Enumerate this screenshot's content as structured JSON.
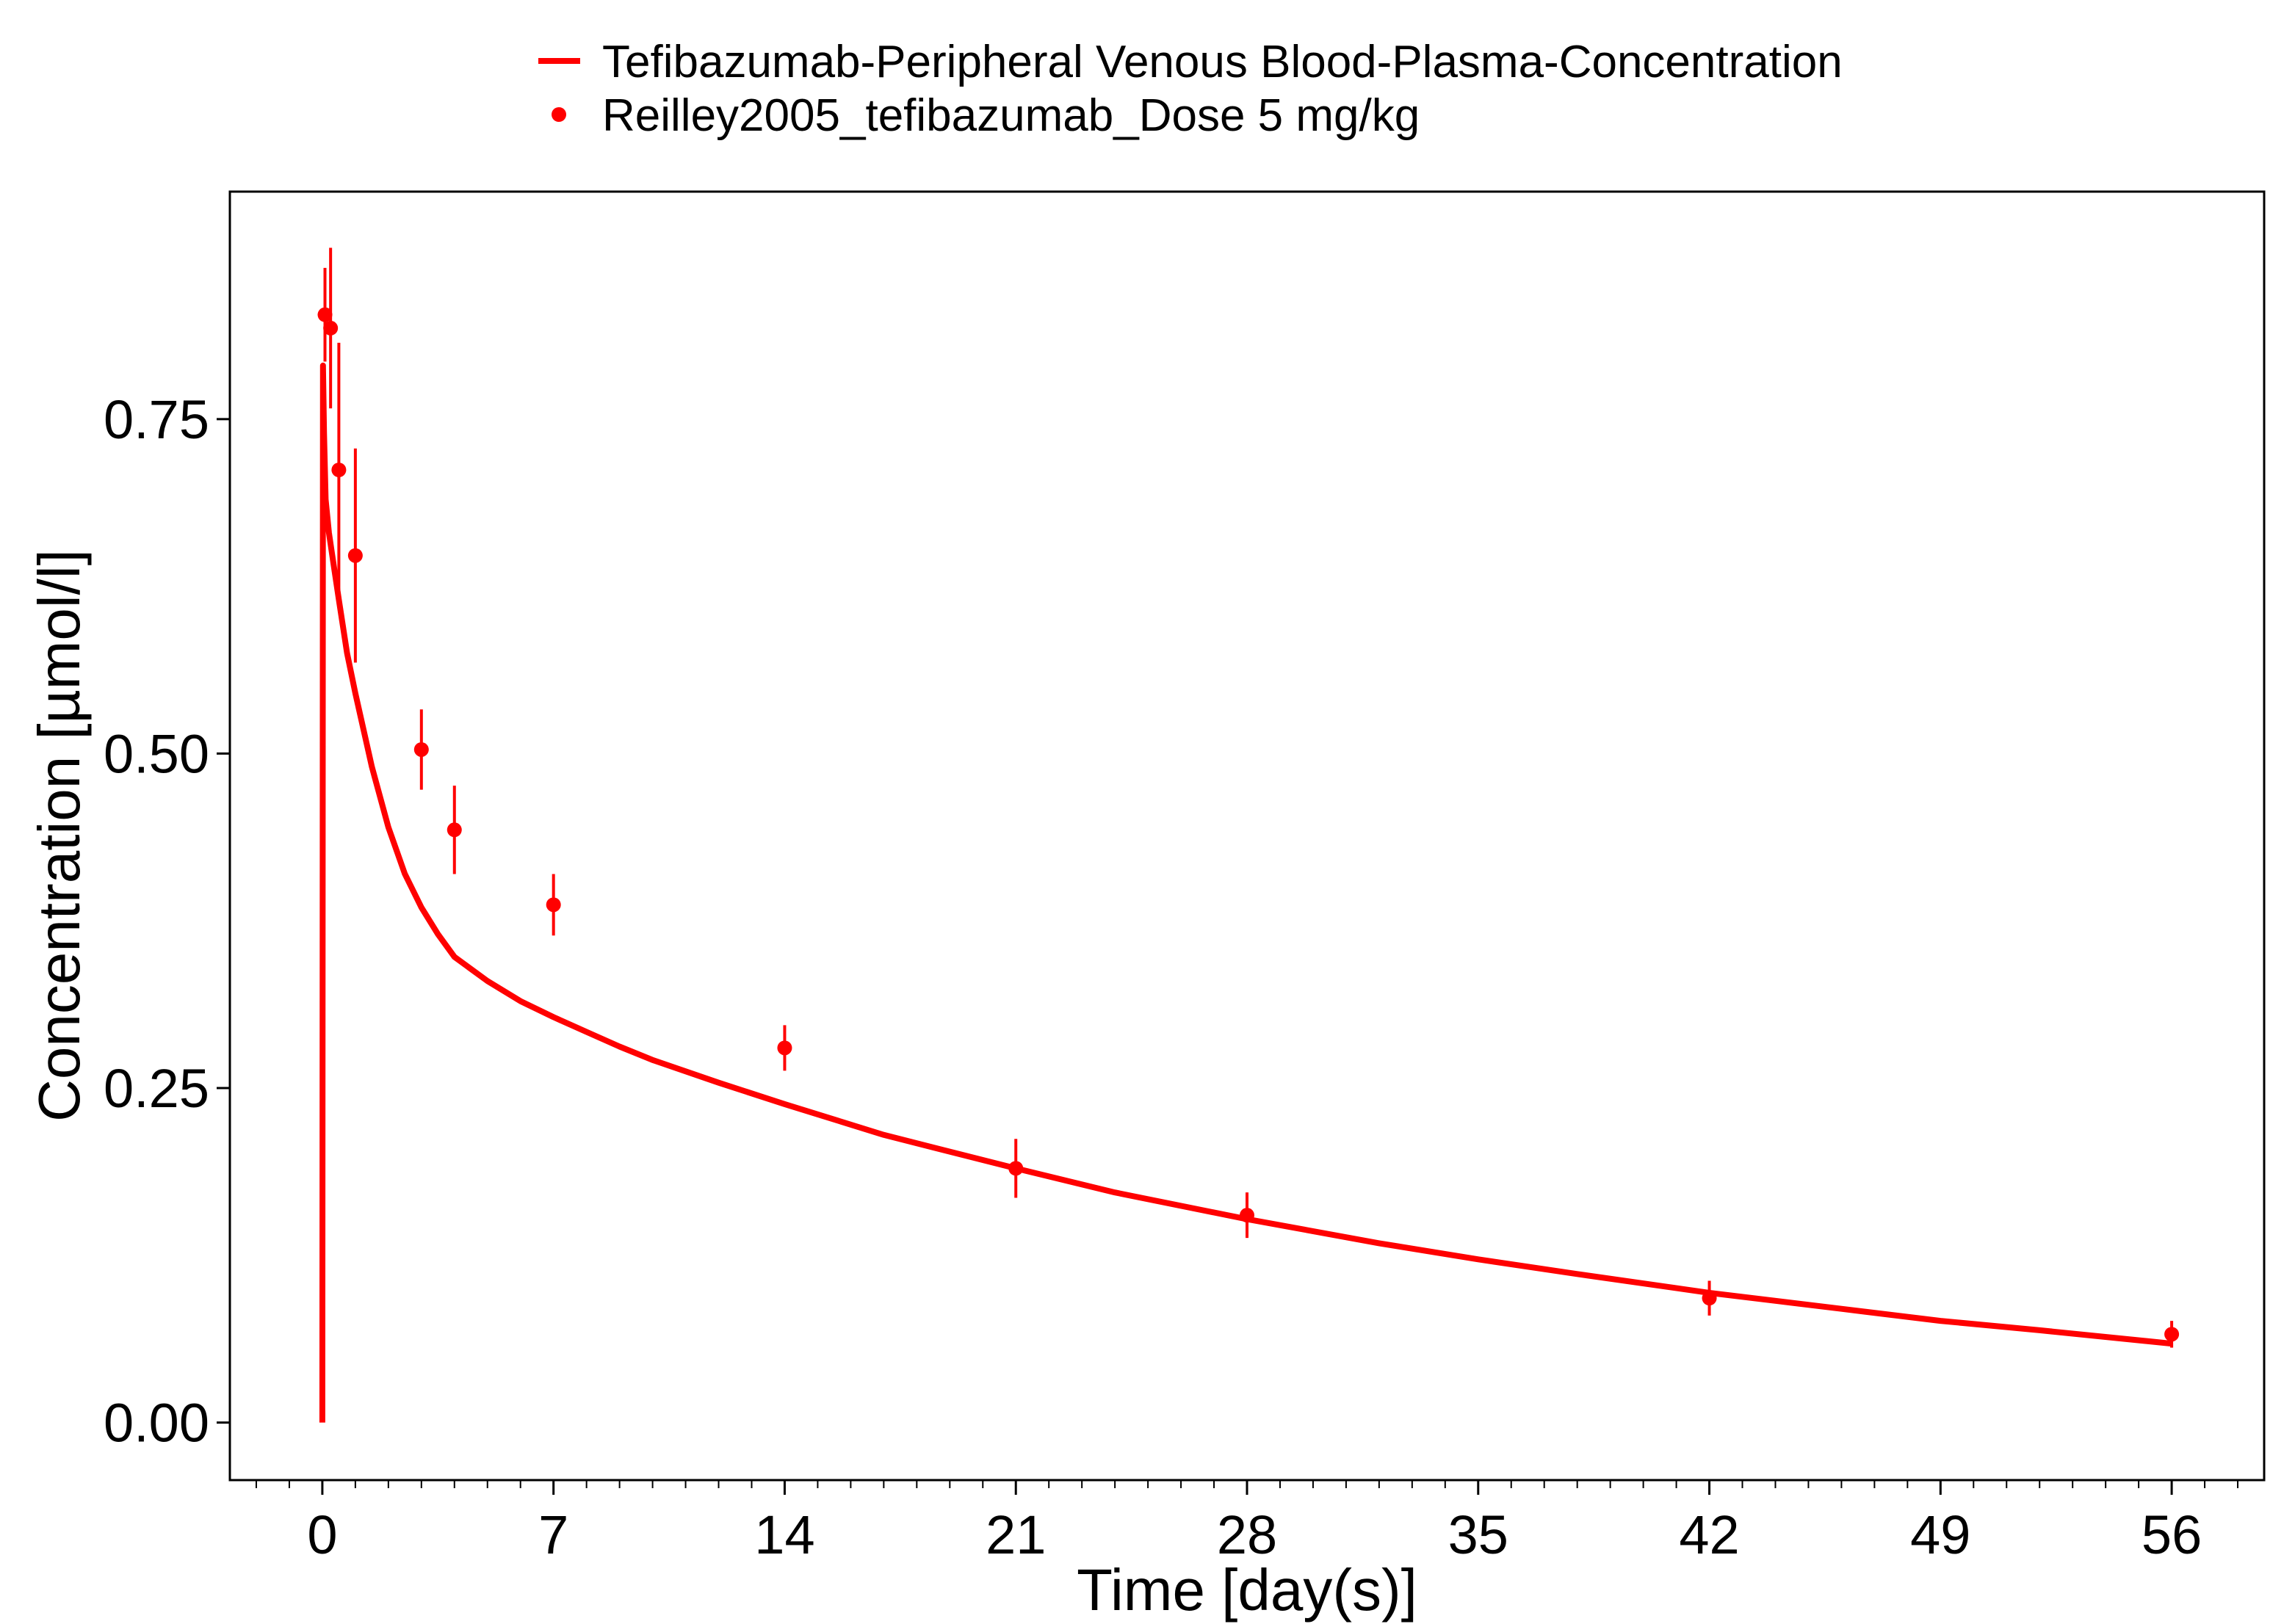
{
  "chart_data": {
    "type": "line",
    "title": "",
    "xlabel": "Time [day(s)]",
    "ylabel": "Concentration [µmol/l]",
    "xlim": [
      -2.8,
      58.8
    ],
    "ylim": [
      -0.043,
      0.92
    ],
    "x_ticks": [
      0,
      7,
      14,
      21,
      28,
      35,
      42,
      49,
      56
    ],
    "x_tick_labels": [
      "0",
      "7",
      "14",
      "21",
      "28",
      "35",
      "42",
      "49",
      "56"
    ],
    "x_minor_step": 1,
    "y_ticks": [
      0,
      0.25,
      0.5,
      0.75
    ],
    "y_tick_labels": [
      "0.00",
      "0.25",
      "0.50",
      "0.75"
    ],
    "grid": false,
    "legend_position": "top",
    "color": "#ff0000",
    "series": [
      {
        "name": "Tefibazumab-Peripheral Venous Blood-Plasma-Concentration",
        "kind": "line",
        "color": "#ff0000",
        "x": [
          0,
          0.02,
          0.05,
          0.1,
          0.2,
          0.35,
          0.5,
          0.75,
          1,
          1.5,
          2,
          2.5,
          3,
          3.5,
          4,
          5,
          6,
          7,
          8,
          9,
          10,
          12,
          14,
          17,
          21,
          24,
          28,
          32,
          35,
          38,
          42,
          46,
          49,
          52,
          56
        ],
        "y": [
          0,
          0.79,
          0.74,
          0.69,
          0.665,
          0.64,
          0.615,
          0.575,
          0.545,
          0.49,
          0.445,
          0.41,
          0.385,
          0.365,
          0.348,
          0.33,
          0.315,
          0.303,
          0.292,
          0.281,
          0.271,
          0.254,
          0.238,
          0.215,
          0.19,
          0.172,
          0.152,
          0.134,
          0.122,
          0.111,
          0.097,
          0.085,
          0.076,
          0.069,
          0.059
        ]
      },
      {
        "name": "Reilley2005_tefibazumab_Dose 5 mg/kg",
        "kind": "scatter",
        "color": "#ff0000",
        "x": [
          0.08,
          0.25,
          0.5,
          1,
          3,
          4,
          7,
          14,
          21,
          28,
          42,
          56
        ],
        "y": [
          0.828,
          0.818,
          0.712,
          0.648,
          0.503,
          0.443,
          0.387,
          0.28,
          0.19,
          0.155,
          0.093,
          0.066
        ],
        "yerr": [
          0.035,
          0.06,
          0.095,
          0.08,
          0.03,
          0.033,
          0.023,
          0.017,
          0.022,
          0.017,
          0.013,
          0.01
        ]
      }
    ]
  }
}
